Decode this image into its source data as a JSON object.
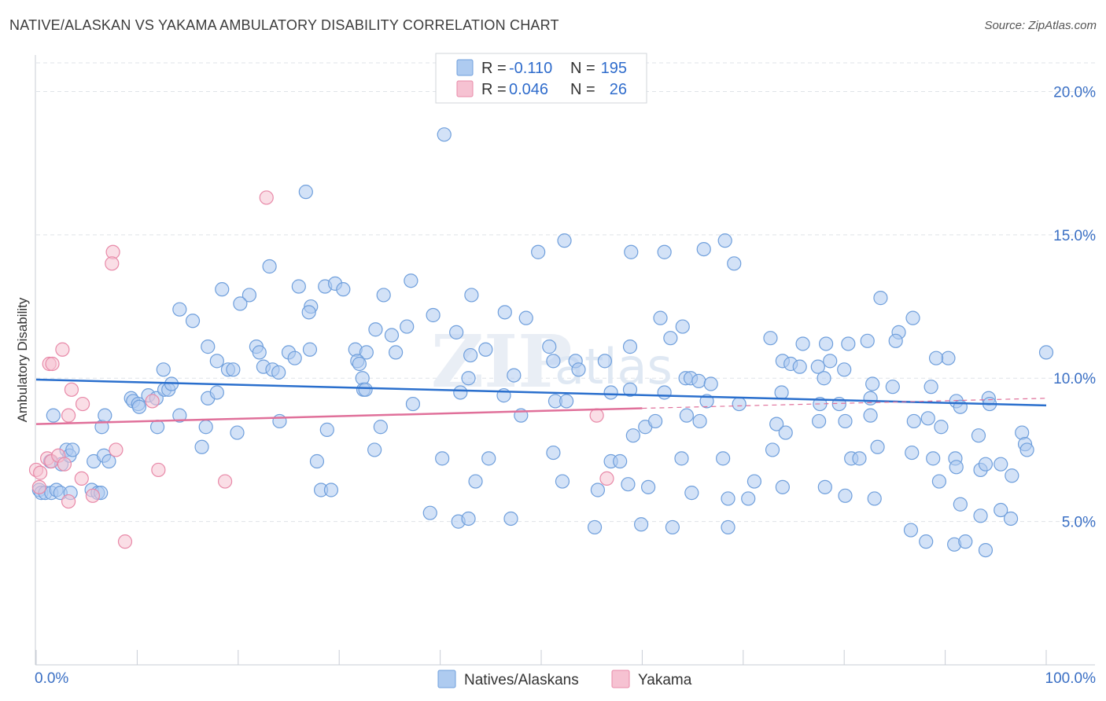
{
  "title": "NATIVE/ALASKAN VS YAKAMA AMBULATORY DISABILITY CORRELATION CHART",
  "source": "Source: ZipAtlas.com",
  "watermark": {
    "part1": "ZIP",
    "part2": "atlas"
  },
  "legend": {
    "row1": {
      "r_label": "R =",
      "r_value": "-0.110",
      "n_label": "N =",
      "n_value": "195"
    },
    "row2": {
      "r_label": "R =",
      "r_value": "0.046",
      "n_label": "N =",
      "n_value": "26"
    }
  },
  "bottom_legend": {
    "series1": "Natives/Alaskans",
    "series2": "Yakama"
  },
  "colors": {
    "blue_fill": "#aecbf0",
    "blue_stroke": "#6f9fdc",
    "blue_line": "#2a6fcd",
    "pink_fill": "#f6c2d2",
    "pink_stroke": "#e889a8",
    "pink_line": "#e0709a",
    "axis_text": "#3a6fc4",
    "grid": "#dfe3e8"
  },
  "chart_data": {
    "type": "scatter",
    "title": "NATIVE/ALASKAN VS YAKAMA AMBULATORY DISABILITY CORRELATION CHART",
    "xlabel": "",
    "ylabel": "Ambulatory Disability",
    "xlim": [
      0,
      100
    ],
    "ylim": [
      0,
      21
    ],
    "x_tick_labels": [
      "0.0%",
      "100.0%"
    ],
    "y_ticks": [
      5,
      10,
      15,
      20
    ],
    "y_tick_labels": [
      "5.0%",
      "10.0%",
      "15.0%",
      "20.0%"
    ],
    "series": [
      {
        "name": "Natives/Alaskans",
        "r": -0.11,
        "n": 195,
        "trend": {
          "x0": 0,
          "y0": 9.95,
          "x1": 100,
          "y1": 9.05
        },
        "points": [
          [
            40.4,
            18.5
          ],
          [
            26.7,
            16.5
          ],
          [
            52.3,
            14.8
          ],
          [
            58.9,
            14.4
          ],
          [
            49.7,
            14.4
          ],
          [
            62.2,
            14.4
          ],
          [
            66.1,
            14.5
          ],
          [
            68.2,
            14.8
          ],
          [
            69.1,
            14.0
          ],
          [
            23.1,
            13.9
          ],
          [
            18.4,
            13.1
          ],
          [
            26.0,
            13.2
          ],
          [
            28.6,
            13.2
          ],
          [
            29.6,
            13.3
          ],
          [
            30.4,
            13.1
          ],
          [
            34.4,
            12.9
          ],
          [
            37.1,
            13.4
          ],
          [
            43.1,
            12.9
          ],
          [
            21.1,
            12.9
          ],
          [
            20.2,
            12.6
          ],
          [
            27.2,
            12.5
          ],
          [
            27.0,
            12.3
          ],
          [
            14.2,
            12.4
          ],
          [
            15.5,
            12.0
          ],
          [
            39.3,
            12.2
          ],
          [
            46.4,
            12.3
          ],
          [
            48.5,
            12.1
          ],
          [
            61.8,
            12.1
          ],
          [
            64.0,
            11.8
          ],
          [
            83.6,
            12.8
          ],
          [
            86.8,
            12.1
          ],
          [
            36.7,
            11.8
          ],
          [
            41.6,
            11.6
          ],
          [
            33.6,
            11.7
          ],
          [
            35.2,
            11.5
          ],
          [
            85.4,
            11.6
          ],
          [
            85.1,
            11.3
          ],
          [
            82.3,
            11.3
          ],
          [
            80.4,
            11.2
          ],
          [
            78.2,
            11.2
          ],
          [
            75.9,
            11.2
          ],
          [
            72.7,
            11.4
          ],
          [
            62.8,
            11.4
          ],
          [
            58.8,
            11.1
          ],
          [
            50.8,
            11.1
          ],
          [
            44.5,
            11.0
          ],
          [
            31.6,
            11.0
          ],
          [
            32.7,
            10.9
          ],
          [
            35.6,
            10.9
          ],
          [
            43.0,
            10.8
          ],
          [
            51.2,
            10.6
          ],
          [
            53.4,
            10.6
          ],
          [
            56.3,
            10.6
          ],
          [
            73.9,
            10.6
          ],
          [
            74.7,
            10.5
          ],
          [
            75.6,
            10.4
          ],
          [
            77.4,
            10.4
          ],
          [
            78.6,
            10.6
          ],
          [
            80.0,
            10.3
          ],
          [
            90.3,
            10.7
          ],
          [
            89.1,
            10.7
          ],
          [
            100.0,
            10.9
          ],
          [
            17.0,
            11.1
          ],
          [
            12.6,
            10.3
          ],
          [
            17.9,
            10.6
          ],
          [
            19.0,
            10.3
          ],
          [
            19.5,
            10.3
          ],
          [
            21.8,
            11.1
          ],
          [
            22.1,
            10.9
          ],
          [
            22.5,
            10.4
          ],
          [
            23.4,
            10.3
          ],
          [
            24.0,
            10.2
          ],
          [
            25.0,
            10.9
          ],
          [
            25.6,
            10.7
          ],
          [
            27.1,
            11.0
          ],
          [
            31.8,
            10.6
          ],
          [
            32.0,
            10.5
          ],
          [
            32.3,
            10.0
          ],
          [
            42.8,
            10.0
          ],
          [
            47.3,
            10.1
          ],
          [
            53.7,
            10.3
          ],
          [
            64.3,
            10.0
          ],
          [
            64.8,
            10.0
          ],
          [
            65.6,
            9.9
          ],
          [
            66.8,
            9.8
          ],
          [
            78.0,
            10.0
          ],
          [
            82.8,
            9.8
          ],
          [
            84.8,
            9.7
          ],
          [
            88.6,
            9.7
          ],
          [
            9.4,
            9.3
          ],
          [
            9.6,
            9.2
          ],
          [
            11.1,
            9.4
          ],
          [
            11.9,
            9.3
          ],
          [
            12.7,
            9.6
          ],
          [
            13.1,
            9.6
          ],
          [
            13.4,
            9.8
          ],
          [
            17.0,
            9.3
          ],
          [
            17.9,
            9.5
          ],
          [
            32.4,
            9.6
          ],
          [
            32.6,
            9.6
          ],
          [
            37.3,
            9.1
          ],
          [
            42.0,
            9.5
          ],
          [
            46.3,
            9.4
          ],
          [
            51.4,
            9.2
          ],
          [
            52.5,
            9.2
          ],
          [
            56.9,
            9.5
          ],
          [
            58.8,
            9.6
          ],
          [
            62.2,
            9.5
          ],
          [
            66.4,
            9.2
          ],
          [
            69.6,
            9.1
          ],
          [
            73.8,
            9.5
          ],
          [
            77.6,
            9.1
          ],
          [
            79.5,
            9.1
          ],
          [
            82.6,
            9.3
          ],
          [
            91.1,
            9.2
          ],
          [
            91.5,
            9.0
          ],
          [
            94.3,
            9.3
          ],
          [
            94.4,
            9.1
          ],
          [
            1.7,
            8.7
          ],
          [
            6.5,
            8.3
          ],
          [
            6.8,
            8.7
          ],
          [
            10.1,
            9.1
          ],
          [
            10.2,
            9.0
          ],
          [
            12.0,
            8.3
          ],
          [
            14.2,
            8.7
          ],
          [
            16.4,
            7.6
          ],
          [
            16.8,
            8.3
          ],
          [
            19.9,
            8.1
          ],
          [
            24.1,
            8.5
          ],
          [
            28.8,
            8.2
          ],
          [
            34.1,
            8.3
          ],
          [
            48.0,
            8.7
          ],
          [
            59.1,
            8.0
          ],
          [
            60.3,
            8.3
          ],
          [
            61.3,
            8.5
          ],
          [
            64.4,
            8.7
          ],
          [
            65.7,
            8.5
          ],
          [
            73.3,
            8.4
          ],
          [
            74.2,
            8.1
          ],
          [
            77.5,
            8.5
          ],
          [
            80.1,
            8.5
          ],
          [
            82.6,
            8.7
          ],
          [
            86.9,
            8.5
          ],
          [
            88.3,
            8.6
          ],
          [
            89.6,
            8.3
          ],
          [
            93.3,
            8.0
          ],
          [
            97.6,
            8.1
          ],
          [
            97.9,
            7.7
          ],
          [
            98.1,
            7.5
          ],
          [
            1.4,
            7.1
          ],
          [
            2.5,
            7.0
          ],
          [
            3.0,
            7.5
          ],
          [
            3.3,
            7.3
          ],
          [
            3.6,
            7.5
          ],
          [
            5.7,
            7.1
          ],
          [
            6.7,
            7.3
          ],
          [
            7.2,
            7.1
          ],
          [
            27.8,
            7.1
          ],
          [
            33.5,
            7.5
          ],
          [
            40.2,
            7.2
          ],
          [
            44.8,
            7.2
          ],
          [
            51.2,
            7.4
          ],
          [
            56.9,
            7.1
          ],
          [
            57.8,
            7.1
          ],
          [
            63.9,
            7.2
          ],
          [
            68.0,
            7.2
          ],
          [
            72.9,
            7.5
          ],
          [
            80.7,
            7.2
          ],
          [
            81.5,
            7.2
          ],
          [
            83.3,
            7.6
          ],
          [
            86.7,
            7.4
          ],
          [
            88.8,
            7.2
          ],
          [
            91.0,
            7.2
          ],
          [
            91.1,
            6.9
          ],
          [
            93.5,
            6.8
          ],
          [
            94.0,
            7.0
          ],
          [
            95.5,
            7.0
          ],
          [
            96.6,
            6.6
          ],
          [
            0.3,
            6.1
          ],
          [
            0.5,
            6.0
          ],
          [
            0.9,
            6.0
          ],
          [
            1.5,
            6.0
          ],
          [
            2.0,
            6.1
          ],
          [
            2.4,
            6.0
          ],
          [
            3.4,
            6.0
          ],
          [
            5.5,
            6.1
          ],
          [
            6.1,
            6.0
          ],
          [
            6.4,
            6.0
          ],
          [
            28.2,
            6.1
          ],
          [
            29.2,
            6.1
          ],
          [
            43.5,
            6.4
          ],
          [
            52.1,
            6.4
          ],
          [
            55.6,
            6.1
          ],
          [
            58.6,
            6.3
          ],
          [
            60.6,
            6.2
          ],
          [
            64.9,
            6.0
          ],
          [
            68.5,
            5.8
          ],
          [
            70.5,
            5.8
          ],
          [
            71.1,
            6.4
          ],
          [
            73.9,
            6.2
          ],
          [
            78.1,
            6.2
          ],
          [
            80.1,
            5.9
          ],
          [
            83.0,
            5.8
          ],
          [
            89.4,
            6.4
          ],
          [
            91.5,
            5.6
          ],
          [
            39.0,
            5.3
          ],
          [
            41.8,
            5.0
          ],
          [
            42.8,
            5.1
          ],
          [
            47.0,
            5.1
          ],
          [
            55.3,
            4.8
          ],
          [
            59.9,
            4.9
          ],
          [
            63.0,
            4.8
          ],
          [
            68.5,
            4.8
          ],
          [
            86.6,
            4.7
          ],
          [
            88.1,
            4.3
          ],
          [
            90.9,
            4.2
          ],
          [
            92.0,
            4.3
          ],
          [
            93.5,
            5.2
          ],
          [
            95.5,
            5.4
          ],
          [
            96.5,
            5.1
          ],
          [
            94.0,
            4.0
          ]
        ]
      },
      {
        "name": "Yakama",
        "r": 0.046,
        "n": 26,
        "trend": {
          "x0": 0,
          "y0": 8.4,
          "x1": 60,
          "y1": 8.95,
          "dashed_to_x": 100,
          "dashed_to_y": 9.3
        },
        "points": [
          [
            22.8,
            16.3
          ],
          [
            7.6,
            14.4
          ],
          [
            7.5,
            14.0
          ],
          [
            2.6,
            11.0
          ],
          [
            1.3,
            10.5
          ],
          [
            1.6,
            10.5
          ],
          [
            3.5,
            9.6
          ],
          [
            4.6,
            9.1
          ],
          [
            11.5,
            9.2
          ],
          [
            3.2,
            8.7
          ],
          [
            55.5,
            8.7
          ],
          [
            7.9,
            7.5
          ],
          [
            1.1,
            7.2
          ],
          [
            1.5,
            7.1
          ],
          [
            2.2,
            7.3
          ],
          [
            2.8,
            7.0
          ],
          [
            0.0,
            6.8
          ],
          [
            0.4,
            6.7
          ],
          [
            12.1,
            6.8
          ],
          [
            4.5,
            6.5
          ],
          [
            18.7,
            6.4
          ],
          [
            56.5,
            6.5
          ],
          [
            0.3,
            6.2
          ],
          [
            5.6,
            5.9
          ],
          [
            3.2,
            5.7
          ],
          [
            8.8,
            4.3
          ]
        ]
      }
    ]
  }
}
